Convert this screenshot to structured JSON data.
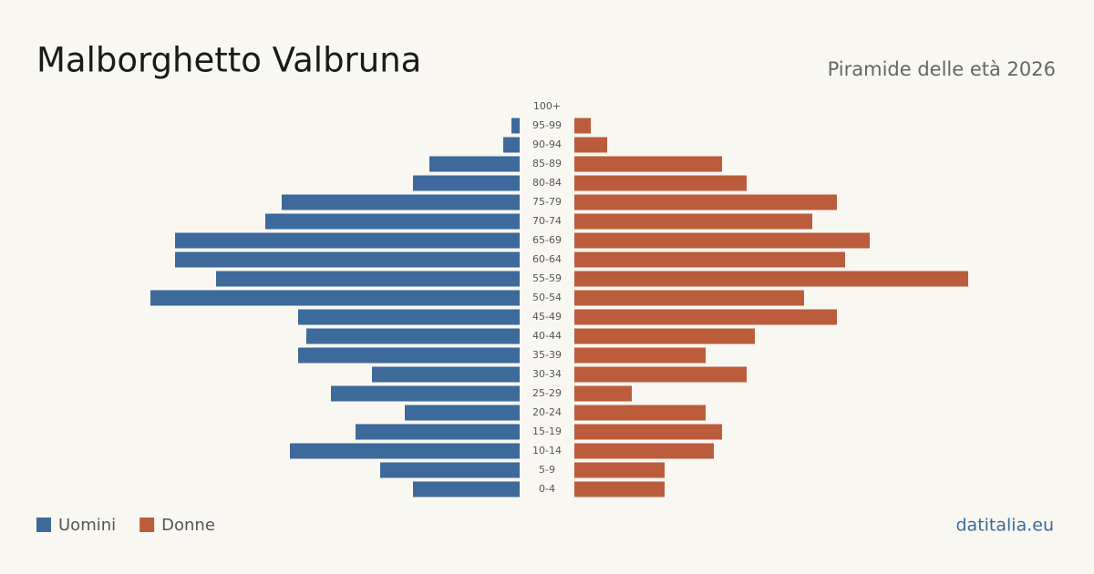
{
  "chart_data": {
    "type": "pyramid",
    "title": "Malborghetto Valbruna",
    "subtitle": "Piramide delle età 2026",
    "source": "datitalia.eu",
    "categories": [
      "100+",
      "95-99",
      "90-94",
      "85-89",
      "80-84",
      "75-79",
      "70-74",
      "65-69",
      "60-64",
      "55-59",
      "50-54",
      "45-49",
      "40-44",
      "35-39",
      "30-34",
      "25-29",
      "20-24",
      "15-19",
      "10-14",
      "5-9",
      "0-4"
    ],
    "series": [
      {
        "name": "Uomini",
        "color": "#3d6a9a",
        "values": [
          0,
          1,
          2,
          11,
          13,
          29,
          31,
          42,
          42,
          37,
          45,
          27,
          26,
          27,
          18,
          23,
          14,
          20,
          28,
          17,
          13
        ]
      },
      {
        "name": "Donne",
        "color": "#bb5c3c",
        "values": [
          0,
          2,
          4,
          18,
          21,
          32,
          29,
          36,
          33,
          48,
          28,
          32,
          22,
          16,
          21,
          7,
          16,
          18,
          17,
          11,
          11
        ]
      }
    ]
  }
}
